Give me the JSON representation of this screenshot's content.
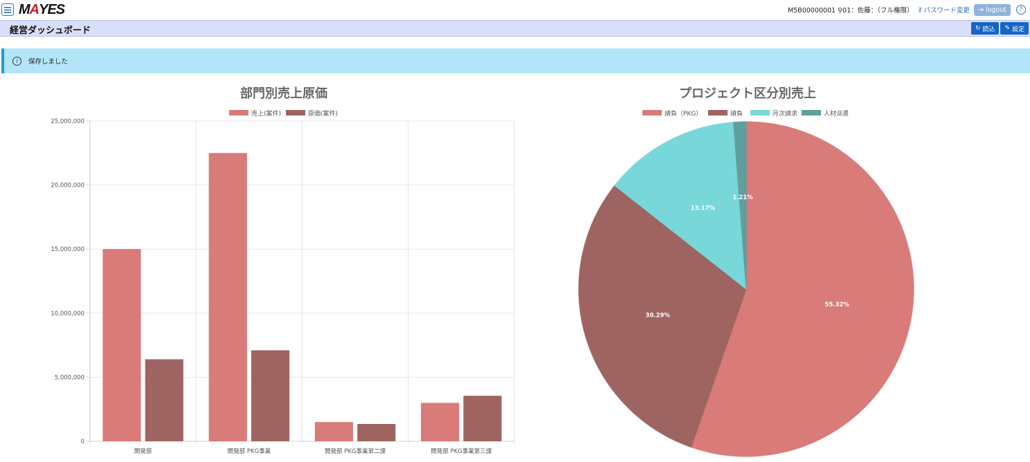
{
  "header": {
    "logo_text_left": "M",
    "logo_text_mid": "A",
    "logo_text_right": "YES",
    "user_info": "M5B00000001 ⚲01：佐藤：（フル権限）",
    "password_link": "パスワード変更",
    "logout_label": "logout",
    "help_label": "?"
  },
  "titlebar": {
    "title": "経営ダッシュボード",
    "reload_label": "読込",
    "settings_label": "設定"
  },
  "alert": {
    "message": "保存しました"
  },
  "colors": {
    "sales": "#d87b79",
    "cost": "#9e6462",
    "monthly": "#78d7d8",
    "staffing": "#5f9f9d"
  },
  "chart_data": [
    {
      "type": "bar",
      "title": "部門別売上原価",
      "categories": [
        "開発部",
        "開発部 PKG事業",
        "開発部 PKG事業第二課",
        "開発部 PKG事業第三課"
      ],
      "series": [
        {
          "name": "売上(案件)",
          "values": [
            15000000,
            22500000,
            1500000,
            3000000
          ]
        },
        {
          "name": "原価(案件)",
          "values": [
            6400000,
            7100000,
            1350000,
            3550000
          ]
        }
      ],
      "ylim": [
        0,
        25000000
      ],
      "yticks": [
        "25,000,000",
        "20,000,000",
        "15,000,000",
        "10,000,000",
        "5,000,000",
        "0"
      ],
      "legend": "top",
      "grid": true
    },
    {
      "type": "pie",
      "title": "プロジェクト区分別売上",
      "slices": [
        {
          "name": "請負（PKG）",
          "value": 55.32,
          "label": "55.32%"
        },
        {
          "name": "請負",
          "value": 30.29,
          "label": "30.29%"
        },
        {
          "name": "月次請求",
          "value": 13.17,
          "label": "13.17%"
        },
        {
          "name": "人材派遣",
          "value": 1.21,
          "label": "1.21%"
        }
      ],
      "legend": "top"
    }
  ]
}
